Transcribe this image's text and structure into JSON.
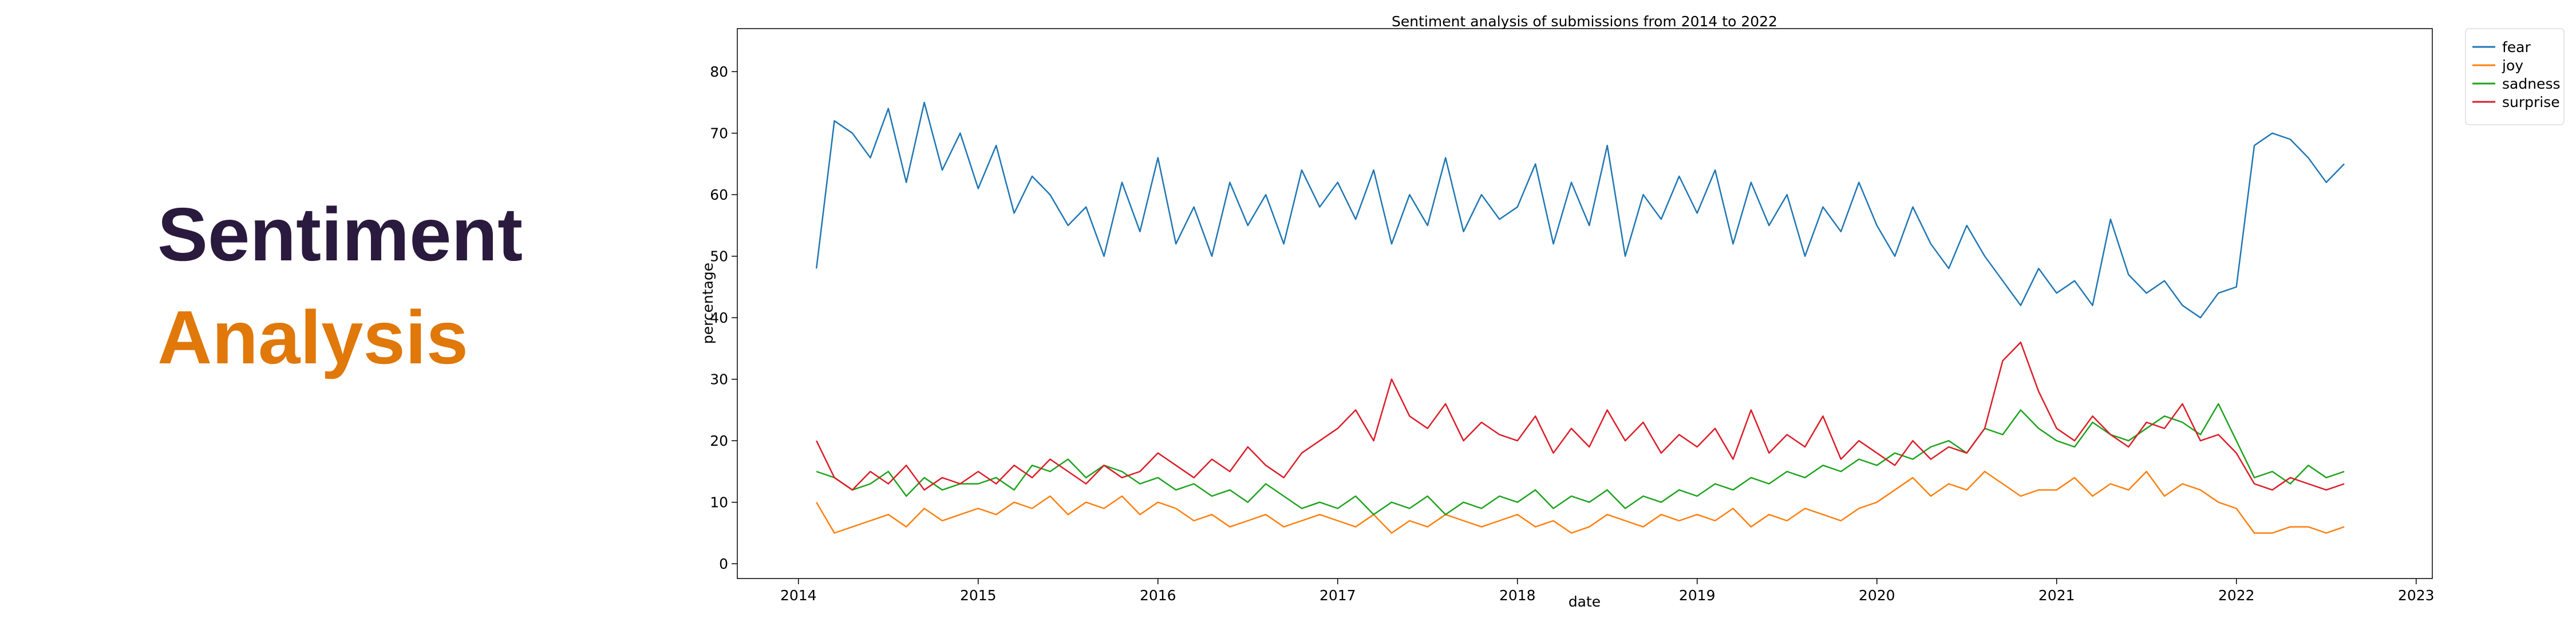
{
  "banner": {
    "line1": "Sentiment",
    "line2": "Analysis"
  },
  "chart_data": {
    "type": "line",
    "title": "Sentiment analysis of submissions from 2014 to 2022",
    "xlabel": "date",
    "ylabel": "percentage",
    "x": [
      2014.1,
      2014.2,
      2014.3,
      2014.4,
      2014.5,
      2014.6,
      2014.7,
      2014.8,
      2014.9,
      2015.0,
      2015.1,
      2015.2,
      2015.3,
      2015.4,
      2015.5,
      2015.6,
      2015.7,
      2015.8,
      2015.9,
      2016.0,
      2016.1,
      2016.2,
      2016.3,
      2016.4,
      2016.5,
      2016.6,
      2016.7,
      2016.8,
      2016.9,
      2017.0,
      2017.1,
      2017.2,
      2017.3,
      2017.4,
      2017.5,
      2017.6,
      2017.7,
      2017.8,
      2017.9,
      2018.0,
      2018.1,
      2018.2,
      2018.3,
      2018.4,
      2018.5,
      2018.6,
      2018.7,
      2018.8,
      2018.9,
      2019.0,
      2019.1,
      2019.2,
      2019.3,
      2019.4,
      2019.5,
      2019.6,
      2019.7,
      2019.8,
      2019.9,
      2020.0,
      2020.1,
      2020.2,
      2020.3,
      2020.4,
      2020.5,
      2020.6,
      2020.7,
      2020.8,
      2020.9,
      2021.0,
      2021.1,
      2021.2,
      2021.3,
      2021.4,
      2021.5,
      2021.6,
      2021.7,
      2021.8,
      2021.9,
      2022.0,
      2022.1,
      2022.2,
      2022.3,
      2022.4,
      2022.5,
      2022.6
    ],
    "series": [
      {
        "name": "fear",
        "color": "#1f77b4",
        "values": [
          48,
          72,
          70,
          66,
          74,
          62,
          75,
          64,
          70,
          61,
          68,
          57,
          63,
          60,
          55,
          58,
          50,
          62,
          54,
          66,
          52,
          58,
          50,
          62,
          55,
          60,
          52,
          64,
          58,
          62,
          56,
          64,
          52,
          60,
          55,
          66,
          54,
          60,
          56,
          58,
          65,
          52,
          62,
          55,
          68,
          50,
          60,
          56,
          63,
          57,
          64,
          52,
          62,
          55,
          60,
          50,
          58,
          54,
          62,
          55,
          50,
          58,
          52,
          48,
          55,
          50,
          46,
          42,
          48,
          44,
          46,
          42,
          56,
          47,
          44,
          46,
          42,
          40,
          44,
          45,
          68,
          70,
          69,
          66,
          62,
          65
        ]
      },
      {
        "name": "joy",
        "color": "#ff7f0e",
        "values": [
          10,
          5,
          6,
          7,
          8,
          6,
          9,
          7,
          8,
          9,
          8,
          10,
          9,
          11,
          8,
          10,
          9,
          11,
          8,
          10,
          9,
          7,
          8,
          6,
          7,
          8,
          6,
          7,
          8,
          7,
          6,
          8,
          5,
          7,
          6,
          8,
          7,
          6,
          7,
          8,
          6,
          7,
          5,
          6,
          8,
          7,
          6,
          8,
          7,
          8,
          7,
          9,
          6,
          8,
          7,
          9,
          8,
          7,
          9,
          10,
          12,
          14,
          11,
          13,
          12,
          15,
          13,
          11,
          12,
          12,
          14,
          11,
          13,
          12,
          15,
          11,
          13,
          12,
          10,
          9,
          5,
          5,
          6,
          6,
          5,
          6
        ]
      },
      {
        "name": "sadness",
        "color": "#1ca31c",
        "values": [
          15,
          14,
          12,
          13,
          15,
          11,
          14,
          12,
          13,
          13,
          14,
          12,
          16,
          15,
          17,
          14,
          16,
          15,
          13,
          14,
          12,
          13,
          11,
          12,
          10,
          13,
          11,
          9,
          10,
          9,
          11,
          8,
          10,
          9,
          11,
          8,
          10,
          9,
          11,
          10,
          12,
          9,
          11,
          10,
          12,
          9,
          11,
          10,
          12,
          11,
          13,
          12,
          14,
          13,
          15,
          14,
          16,
          15,
          17,
          16,
          18,
          17,
          19,
          20,
          18,
          22,
          21,
          25,
          22,
          20,
          19,
          23,
          21,
          20,
          22,
          24,
          23,
          21,
          26,
          20,
          14,
          15,
          13,
          16,
          14,
          15
        ]
      },
      {
        "name": "surprise",
        "color": "#dc1c28",
        "values": [
          20,
          14,
          12,
          15,
          13,
          16,
          12,
          14,
          13,
          15,
          13,
          16,
          14,
          17,
          15,
          13,
          16,
          14,
          15,
          18,
          16,
          14,
          17,
          15,
          19,
          16,
          14,
          18,
          20,
          22,
          25,
          20,
          30,
          24,
          22,
          26,
          20,
          23,
          21,
          20,
          24,
          18,
          22,
          19,
          25,
          20,
          23,
          18,
          21,
          19,
          22,
          17,
          25,
          18,
          21,
          19,
          24,
          17,
          20,
          18,
          16,
          20,
          17,
          19,
          18,
          22,
          33,
          36,
          28,
          22,
          20,
          24,
          21,
          19,
          23,
          22,
          26,
          20,
          21,
          18,
          13,
          12,
          14,
          13,
          12,
          13
        ]
      }
    ],
    "xlim": [
      2013.66,
      2023.09
    ],
    "xticks": [
      2014,
      2015,
      2016,
      2017,
      2018,
      2019,
      2020,
      2021,
      2022,
      2023
    ],
    "ylim": [
      -2.4,
      87
    ],
    "yticks": [
      0,
      10,
      20,
      30,
      40,
      50,
      60,
      70,
      80
    ],
    "grid": false,
    "legend": "outside upper right"
  }
}
